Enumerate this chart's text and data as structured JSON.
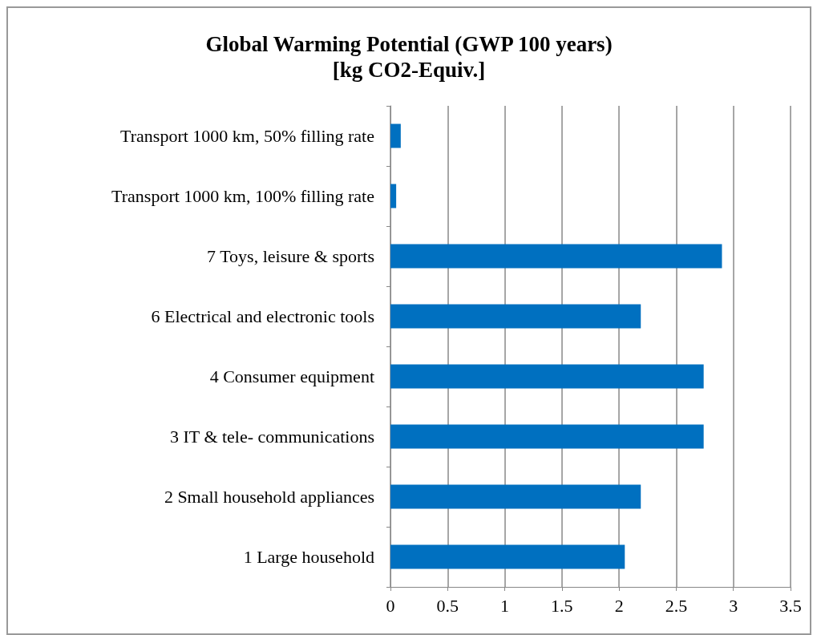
{
  "chart_data": {
    "type": "bar",
    "orientation": "horizontal",
    "title": "Global Warming Potential (GWP 100 years)\n[kg CO2-Equiv.]",
    "categories": [
      "Transport 1000 km, 50% filling rate",
      "Transport 1000 km, 100% filling rate",
      "7 Toys, leisure & sports",
      "6 Electrical and electronic tools",
      "4 Consumer equipment",
      "3 IT & tele- communications",
      "2 Small household appliances",
      "1 Large household"
    ],
    "values": [
      0.09,
      0.05,
      2.9,
      2.19,
      2.74,
      2.74,
      2.19,
      2.05
    ],
    "color": "#0070c0",
    "xlim": [
      0,
      3.5
    ],
    "xticks": [
      0,
      0.5,
      1,
      1.5,
      2,
      2.5,
      3,
      3.5
    ],
    "grid": "x"
  }
}
